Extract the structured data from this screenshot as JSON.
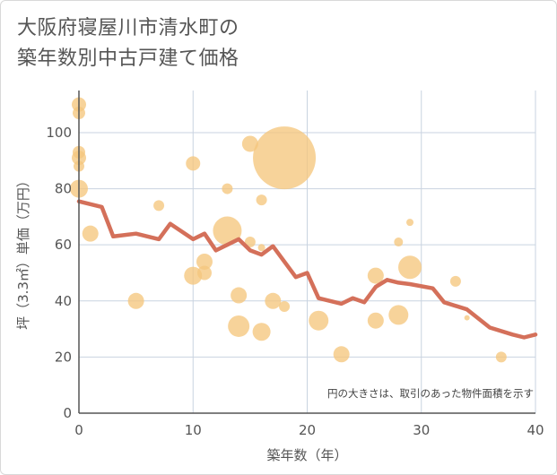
{
  "chart_data": {
    "type": "scatter",
    "title_lines": [
      "大阪府寝屋川市清水町の",
      "築年数別中古戸建て価格"
    ],
    "xlabel": "築年数（年）",
    "ylabel": "坪（3.3㎡）単価（万円）",
    "xlim": [
      0,
      40
    ],
    "ylim": [
      0,
      115
    ],
    "x_ticks": [
      0,
      10,
      20,
      30,
      40
    ],
    "y_ticks": [
      0,
      20,
      40,
      60,
      80,
      100
    ],
    "grid": true,
    "note": "円の大きさは、取引のあった物件面積を示す",
    "colors": {
      "bubble": "#f5c77e",
      "line": "#d4705a",
      "grid": "#c9d3e0",
      "axis": "#555555"
    },
    "bubbles": [
      {
        "x": 0,
        "y": 110,
        "size": 8
      },
      {
        "x": 0,
        "y": 107,
        "size": 7
      },
      {
        "x": 0,
        "y": 93,
        "size": 7
      },
      {
        "x": 0,
        "y": 91,
        "size": 8
      },
      {
        "x": 0,
        "y": 88,
        "size": 6
      },
      {
        "x": 0,
        "y": 80,
        "size": 10
      },
      {
        "x": 1,
        "y": 64,
        "size": 9
      },
      {
        "x": 5,
        "y": 40,
        "size": 9
      },
      {
        "x": 7,
        "y": 74,
        "size": 6
      },
      {
        "x": 10,
        "y": 89,
        "size": 8
      },
      {
        "x": 10,
        "y": 49,
        "size": 10
      },
      {
        "x": 11,
        "y": 54,
        "size": 9
      },
      {
        "x": 11,
        "y": 50,
        "size": 8
      },
      {
        "x": 13,
        "y": 80,
        "size": 6
      },
      {
        "x": 13,
        "y": 65,
        "size": 16
      },
      {
        "x": 14,
        "y": 42,
        "size": 9
      },
      {
        "x": 14,
        "y": 31,
        "size": 12
      },
      {
        "x": 15,
        "y": 96,
        "size": 9
      },
      {
        "x": 15,
        "y": 61,
        "size": 6
      },
      {
        "x": 16,
        "y": 76,
        "size": 6
      },
      {
        "x": 16,
        "y": 59,
        "size": 4
      },
      {
        "x": 16,
        "y": 29,
        "size": 10
      },
      {
        "x": 17,
        "y": 40,
        "size": 9
      },
      {
        "x": 18,
        "y": 91,
        "size": 35
      },
      {
        "x": 18,
        "y": 38,
        "size": 6
      },
      {
        "x": 21,
        "y": 33,
        "size": 11
      },
      {
        "x": 23,
        "y": 21,
        "size": 9
      },
      {
        "x": 26,
        "y": 49,
        "size": 9
      },
      {
        "x": 26,
        "y": 33,
        "size": 9
      },
      {
        "x": 28,
        "y": 61,
        "size": 5
      },
      {
        "x": 28,
        "y": 35,
        "size": 11
      },
      {
        "x": 29,
        "y": 68,
        "size": 4
      },
      {
        "x": 29,
        "y": 52,
        "size": 13
      },
      {
        "x": 33,
        "y": 47,
        "size": 6
      },
      {
        "x": 34,
        "y": 34,
        "size": 3
      },
      {
        "x": 37,
        "y": 20,
        "size": 6
      }
    ],
    "line": {
      "x": [
        0,
        1,
        2,
        3,
        5,
        7,
        8,
        10,
        11,
        12,
        14,
        15,
        16,
        17,
        19,
        20,
        21,
        23,
        24,
        25,
        26,
        27,
        28,
        29,
        31,
        32,
        34,
        36,
        38,
        39,
        40
      ],
      "y": [
        75.5,
        74.5,
        73.5,
        63,
        64,
        62,
        67.5,
        62,
        64,
        58,
        62,
        58,
        56.5,
        59.5,
        48.5,
        50,
        41,
        39,
        41,
        39.5,
        45,
        47.5,
        46.5,
        46,
        44.5,
        39.5,
        37,
        30.5,
        28,
        27,
        28
      ]
    }
  }
}
